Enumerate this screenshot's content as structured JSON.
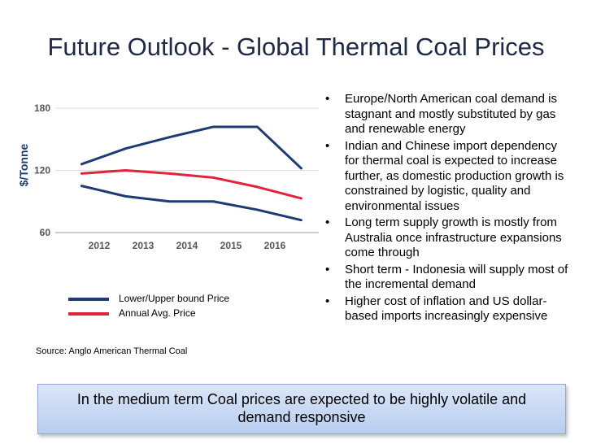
{
  "title": "Future Outlook - Global Thermal Coal Prices",
  "chart_data": {
    "type": "line",
    "title": "",
    "xlabel": "",
    "ylabel": "$/Tonne",
    "x": [
      2011.6,
      2012.6,
      2013.6,
      2014.6,
      2015.6,
      2016.6
    ],
    "xticks": [
      "2012",
      "2013",
      "2014",
      "2015",
      "2016"
    ],
    "yticks": [
      "60",
      "120",
      "180"
    ],
    "xlim": [
      2011.0,
      2017.0
    ],
    "ylim": [
      60,
      180
    ],
    "grid": "horizontal",
    "series": [
      {
        "name": "Lower/Upper bound Price",
        "role": "upper",
        "color": "#1f3b73",
        "values": [
          126,
          141,
          152,
          162,
          162,
          122
        ]
      },
      {
        "name": "Annual Avg. Price",
        "color": "#e0243c",
        "values": [
          117,
          120,
          117,
          113,
          104,
          93
        ]
      },
      {
        "name": "",
        "role": "lower",
        "color": "#1f3b73",
        "values": [
          105,
          95,
          90,
          90,
          82,
          72
        ]
      }
    ]
  },
  "legend": [
    {
      "label": "Lower/Upper bound Price",
      "color": "#1f3b73"
    },
    {
      "label": "Annual Avg. Price",
      "color": "#e0243c"
    }
  ],
  "source": "Source: Anglo American Thermal Coal",
  "bullets": [
    "Europe/North American coal demand is stagnant and mostly substituted by gas and renewable energy",
    "Indian and Chinese import dependency for thermal coal is expected to increase further, as domestic production growth is constrained by logistic, quality and environmental issues",
    "Long term supply growth is mostly from Australia once infrastructure expansions come through",
    "Short term - Indonesia will supply most of the incremental demand",
    "Higher cost of inflation and US dollar-based imports increasingly expensive"
  ],
  "bullet_glyph": "•",
  "banner": "In the medium term Coal prices are expected to be highly volatile and demand responsive"
}
